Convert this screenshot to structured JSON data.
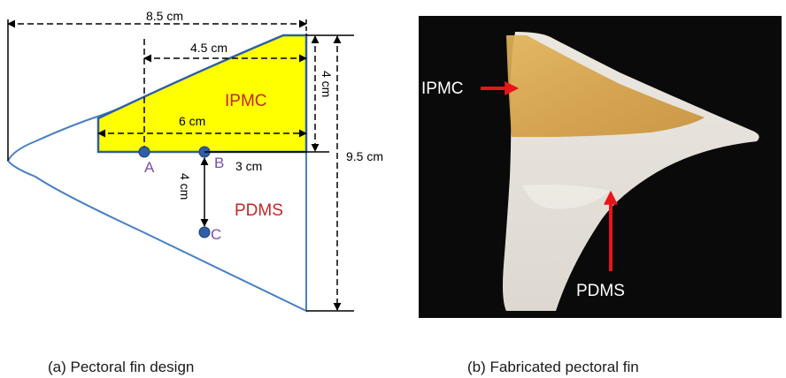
{
  "panel_a": {
    "dimensions": {
      "overall_length": "8.5 cm",
      "ipmc_top_length": "4.5 cm",
      "ipmc_base_length": "6 cm",
      "ipmc_height": "4 cm",
      "overall_height": "9.5 cm",
      "b_offset": "3 cm",
      "c_depth": "4 cm"
    },
    "region_labels": {
      "ipmc": "IPMC",
      "pdms": "PDMS"
    },
    "points": {
      "a": "A",
      "b": "B",
      "c": "C"
    },
    "caption": "(a) Pectoral fin design",
    "colors": {
      "ipmc_fill": "#ffff00",
      "outline": "#4a7fc1",
      "point": "#2f5da6",
      "label_red": "#c0282b",
      "point_label": "#7a4ea8"
    }
  },
  "panel_b": {
    "labels": {
      "ipmc": "IPMC",
      "pdms": "PDMS"
    },
    "caption": "(b) Fabricated pectoral fin",
    "colors": {
      "background": "#0a0a0a",
      "arrow": "#e8141b",
      "pdms": "#e6e2dc",
      "ipmc": "#d9a94f"
    }
  }
}
